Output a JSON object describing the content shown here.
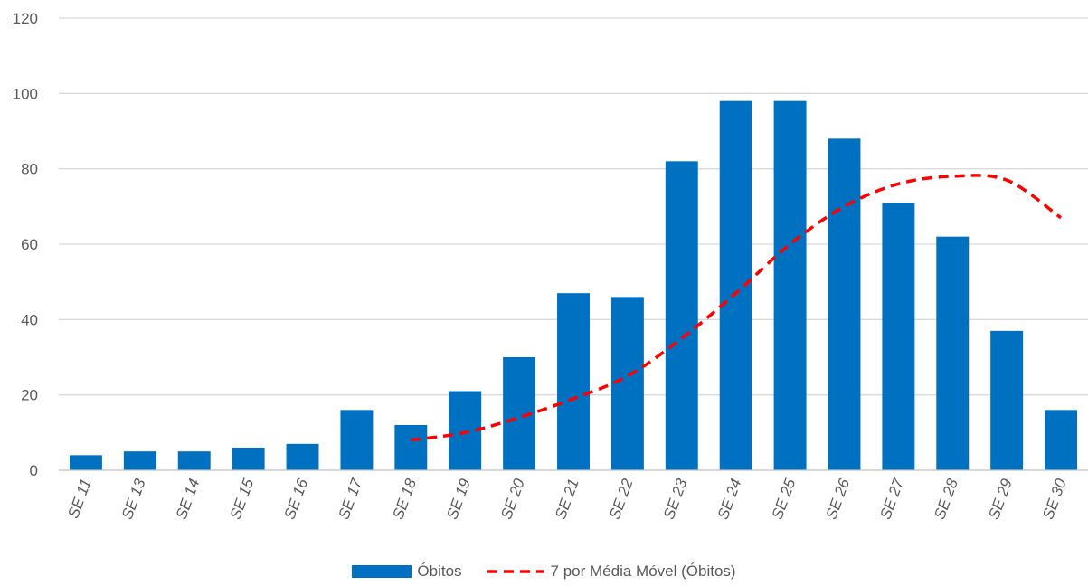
{
  "chart_data": {
    "type": "bar",
    "categories": [
      "SE 11",
      "SE 13",
      "SE 14",
      "SE 15",
      "SE 16",
      "SE 17",
      "SE 18",
      "SE 19",
      "SE 20",
      "SE 21",
      "SE 22",
      "SE 23",
      "SE 24",
      "SE 25",
      "SE 26",
      "SE 27",
      "SE 28",
      "SE 29",
      "SE 30"
    ],
    "series": [
      {
        "name": "Óbitos",
        "type": "bar",
        "color": "#0070c0",
        "values": [
          4,
          5,
          5,
          6,
          7,
          16,
          12,
          21,
          30,
          47,
          46,
          82,
          98,
          98,
          88,
          71,
          62,
          37,
          16
        ]
      },
      {
        "name": "7 por Média Móvel (Óbitos)",
        "type": "line",
        "style": "dashed",
        "color": "#ff0000",
        "values": [
          null,
          null,
          null,
          null,
          null,
          null,
          8,
          10,
          14,
          19,
          25,
          35,
          47,
          60,
          70,
          76,
          78,
          77,
          67
        ]
      }
    ],
    "yticks": [
      0,
      20,
      40,
      60,
      80,
      100,
      120
    ],
    "ylim": [
      0,
      120
    ],
    "grid": true,
    "legend_position": "bottom"
  }
}
